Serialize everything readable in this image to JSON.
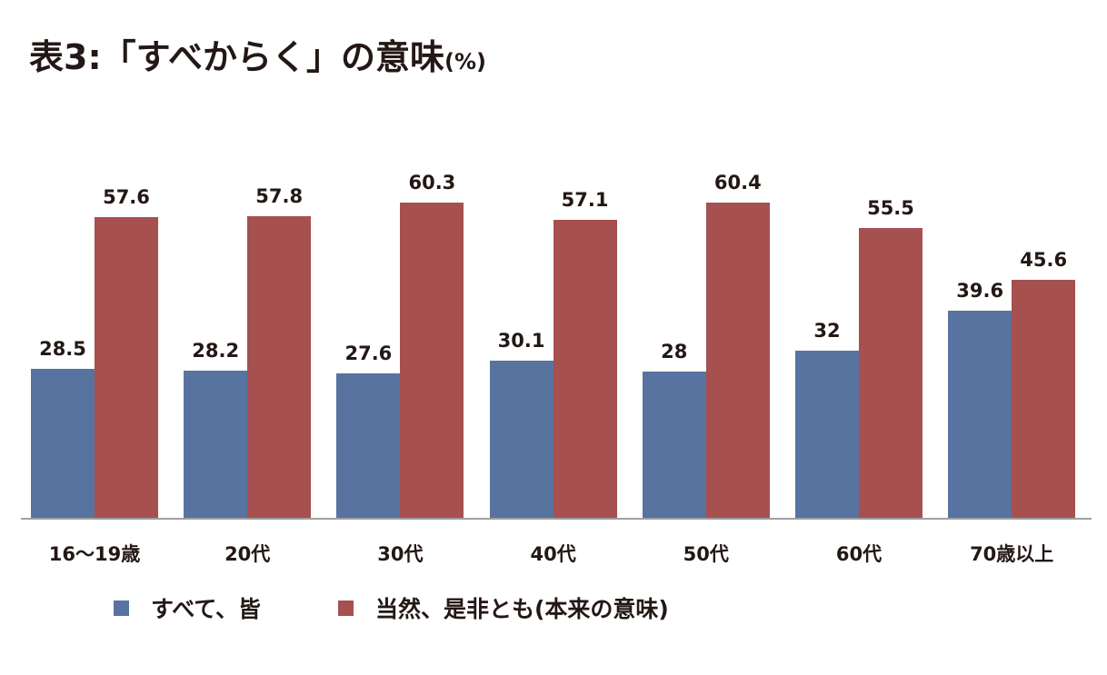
{
  "title": {
    "main": "表3:「すべからく」の意味",
    "unit": "(%)"
  },
  "colors": {
    "series0": "#58739f",
    "series1": "#a65050",
    "axis": "#a0a0a0",
    "text": "#231815"
  },
  "legend": {
    "items": [
      {
        "label": "すべて、皆",
        "color": "#58739f"
      },
      {
        "label": "当然、是非とも(本来の意味)",
        "color": "#a65050"
      }
    ]
  },
  "chart_data": {
    "type": "bar",
    "title": "表3:「すべからく」の意味(%)",
    "xlabel": "",
    "ylabel": "%",
    "categories": [
      "16〜19歳",
      "20代",
      "30代",
      "40代",
      "50代",
      "60代",
      "70歳以上"
    ],
    "series": [
      {
        "name": "すべて、皆",
        "values": [
          28.5,
          28.2,
          27.6,
          30.1,
          28,
          32,
          39.6
        ]
      },
      {
        "name": "当然、是非とも(本来の意味)",
        "values": [
          57.6,
          57.8,
          60.3,
          57.1,
          60.4,
          55.5,
          45.6
        ]
      }
    ],
    "value_labels": [
      [
        "28.5",
        "28.2",
        "27.6",
        "30.1",
        "28",
        "32",
        "39.6"
      ],
      [
        "57.6",
        "57.8",
        "60.3",
        "57.1",
        "60.4",
        "55.5",
        "45.6"
      ]
    ],
    "ylim": [
      0,
      70
    ],
    "grid": false,
    "legend_position": "bottom"
  }
}
